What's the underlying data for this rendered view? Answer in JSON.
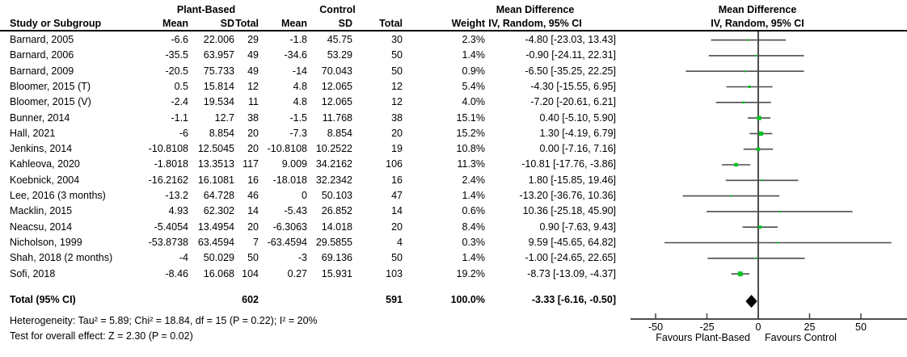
{
  "headers": {
    "plant_based": "Plant-Based",
    "control": "Control",
    "mean_difference": "Mean Difference",
    "iv_random": "IV, Random, 95% CI",
    "study": "Study or Subgroup",
    "mean": "Mean",
    "sd": "SD",
    "total": "Total",
    "weight": "Weight"
  },
  "footnotes": {
    "heterogeneity": "Heterogeneity: Tau² = 5.89; Chi² = 18.84, df = 15 (P = 0.22); I² = 20%",
    "overall_effect": "Test for overall effect: Z = 2.30 (P = 0.02)"
  },
  "colors": {
    "marker_green": "#00c520",
    "line_gray": "#4d4d4d",
    "diamond_black": "#000000",
    "text_black": "#000000"
  },
  "chart_data": {
    "type": "scatter",
    "subtype": "forest-plot",
    "title": "Mean Difference, IV, Random, 95% CI",
    "x_axis": {
      "ticks": [
        -50,
        -25,
        0,
        25,
        50
      ],
      "range": [
        -62,
        72
      ],
      "favours_left": "Favours Plant-Based",
      "favours_right": "Favours Control"
    },
    "studies": [
      {
        "name": "Barnard, 2005",
        "pb_mean": "-6.6",
        "pb_sd": "22.006",
        "pb_total": "29",
        "c_mean": "-1.8",
        "c_sd": "45.75",
        "c_total": "30",
        "weight": "2.3%",
        "weight_pct": 2.3,
        "ci": "-4.80 [-23.03, 13.43]",
        "md": -4.8,
        "lo": -23.03,
        "hi": 13.43
      },
      {
        "name": "Barnard, 2006",
        "pb_mean": "-35.5",
        "pb_sd": "63.957",
        "pb_total": "49",
        "c_mean": "-34.6",
        "c_sd": "53.29",
        "c_total": "50",
        "weight": "1.4%",
        "weight_pct": 1.4,
        "ci": "-0.90 [-24.11, 22.31]",
        "md": -0.9,
        "lo": -24.11,
        "hi": 22.31
      },
      {
        "name": "Barnard, 2009",
        "pb_mean": "-20.5",
        "pb_sd": "75.733",
        "pb_total": "49",
        "c_mean": "-14",
        "c_sd": "70.043",
        "c_total": "50",
        "weight": "0.9%",
        "weight_pct": 0.9,
        "ci": "-6.50 [-35.25, 22.25]",
        "md": -6.5,
        "lo": -35.25,
        "hi": 22.25
      },
      {
        "name": "Bloomer, 2015 (T)",
        "pb_mean": "0.5",
        "pb_sd": "15.814",
        "pb_total": "12",
        "c_mean": "4.8",
        "c_sd": "12.065",
        "c_total": "12",
        "weight": "5.4%",
        "weight_pct": 5.4,
        "ci": "-4.30 [-15.55, 6.95]",
        "md": -4.3,
        "lo": -15.55,
        "hi": 6.95
      },
      {
        "name": "Bloomer, 2015 (V)",
        "pb_mean": "-2.4",
        "pb_sd": "19.534",
        "pb_total": "11",
        "c_mean": "4.8",
        "c_sd": "12.065",
        "c_total": "12",
        "weight": "4.0%",
        "weight_pct": 4.0,
        "ci": "-7.20 [-20.61, 6.21]",
        "md": -7.2,
        "lo": -20.61,
        "hi": 6.21
      },
      {
        "name": "Bunner, 2014",
        "pb_mean": "-1.1",
        "pb_sd": "12.7",
        "pb_total": "38",
        "c_mean": "-1.5",
        "c_sd": "11.768",
        "c_total": "38",
        "weight": "15.1%",
        "weight_pct": 15.1,
        "ci": "0.40 [-5.10, 5.90]",
        "md": 0.4,
        "lo": -5.1,
        "hi": 5.9
      },
      {
        "name": "Hall, 2021",
        "pb_mean": "-6",
        "pb_sd": "8.854",
        "pb_total": "20",
        "c_mean": "-7.3",
        "c_sd": "8.854",
        "c_total": "20",
        "weight": "15.2%",
        "weight_pct": 15.2,
        "ci": "1.30 [-4.19, 6.79]",
        "md": 1.3,
        "lo": -4.19,
        "hi": 6.79
      },
      {
        "name": "Jenkins, 2014",
        "pb_mean": "-10.8108",
        "pb_sd": "12.5045",
        "pb_total": "20",
        "c_mean": "-10.8108",
        "c_sd": "10.2522",
        "c_total": "19",
        "weight": "10.8%",
        "weight_pct": 10.8,
        "ci": "0.00 [-7.16, 7.16]",
        "md": 0.0,
        "lo": -7.16,
        "hi": 7.16
      },
      {
        "name": "Kahleova, 2020",
        "pb_mean": "-1.8018",
        "pb_sd": "13.3513",
        "pb_total": "117",
        "c_mean": "9.009",
        "c_sd": "34.2162",
        "c_total": "106",
        "weight": "11.3%",
        "weight_pct": 11.3,
        "ci": "-10.81 [-17.76, -3.86]",
        "md": -10.81,
        "lo": -17.76,
        "hi": -3.86
      },
      {
        "name": "Koebnick, 2004",
        "pb_mean": "-16.2162",
        "pb_sd": "16.1081",
        "pb_total": "16",
        "c_mean": "-18.018",
        "c_sd": "32.2342",
        "c_total": "16",
        "weight": "2.4%",
        "weight_pct": 2.4,
        "ci": "1.80 [-15.85, 19.46]",
        "md": 1.8,
        "lo": -15.85,
        "hi": 19.46
      },
      {
        "name": "Lee, 2016 (3 months)",
        "pb_mean": "-13.2",
        "pb_sd": "64.728",
        "pb_total": "46",
        "c_mean": "0",
        "c_sd": "50.103",
        "c_total": "47",
        "weight": "1.4%",
        "weight_pct": 1.4,
        "ci": "-13.20 [-36.76, 10.36]",
        "md": -13.2,
        "lo": -36.76,
        "hi": 10.36
      },
      {
        "name": "Macklin, 2015",
        "pb_mean": "4.93",
        "pb_sd": "62.302",
        "pb_total": "14",
        "c_mean": "-5.43",
        "c_sd": "26.852",
        "c_total": "14",
        "weight": "0.6%",
        "weight_pct": 0.6,
        "ci": "10.36 [-25.18, 45.90]",
        "md": 10.36,
        "lo": -25.18,
        "hi": 45.9
      },
      {
        "name": "Neacsu, 2014",
        "pb_mean": "-5.4054",
        "pb_sd": "13.4954",
        "pb_total": "20",
        "c_mean": "-6.3063",
        "c_sd": "14.018",
        "c_total": "20",
        "weight": "8.4%",
        "weight_pct": 8.4,
        "ci": "0.90 [-7.63, 9.43]",
        "md": 0.9,
        "lo": -7.63,
        "hi": 9.43
      },
      {
        "name": "Nicholson, 1999",
        "pb_mean": "-53.8738",
        "pb_sd": "63.4594",
        "pb_total": "7",
        "c_mean": "-63.4594",
        "c_sd": "29.5855",
        "c_total": "4",
        "weight": "0.3%",
        "weight_pct": 0.3,
        "ci": "9.59 [-45.65, 64.82]",
        "md": 9.59,
        "lo": -45.65,
        "hi": 64.82
      },
      {
        "name": "Shah, 2018 (2 months)",
        "pb_mean": "-4",
        "pb_sd": "50.029",
        "pb_total": "50",
        "c_mean": "-3",
        "c_sd": "69.136",
        "c_total": "50",
        "weight": "1.4%",
        "weight_pct": 1.4,
        "ci": "-1.00 [-24.65, 22.65]",
        "md": -1.0,
        "lo": -24.65,
        "hi": 22.65
      },
      {
        "name": "Sofi, 2018",
        "pb_mean": "-8.46",
        "pb_sd": "16.068",
        "pb_total": "104",
        "c_mean": "0.27",
        "c_sd": "15.931",
        "c_total": "103",
        "weight": "19.2%",
        "weight_pct": 19.2,
        "ci": "-8.73 [-13.09, -4.37]",
        "md": -8.73,
        "lo": -13.09,
        "hi": -4.37
      }
    ],
    "total": {
      "label": "Total (95% CI)",
      "pb_total": "602",
      "c_total": "591",
      "weight": "100.0%",
      "ci": "-3.33 [-6.16, -0.50]",
      "md": -3.33,
      "lo": -6.16,
      "hi": -0.5
    }
  }
}
